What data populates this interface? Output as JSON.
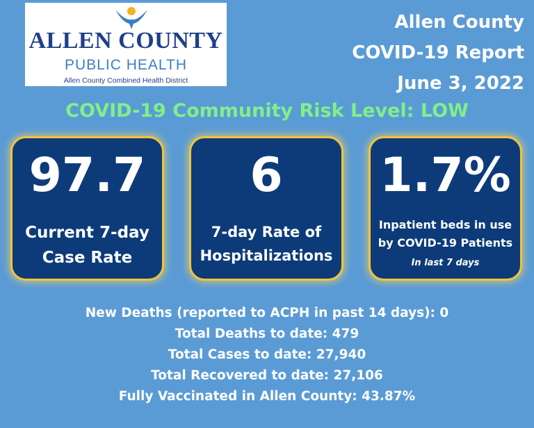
{
  "logo": {
    "name": "ALLEN COUNTY",
    "subtitle": "PUBLIC HEALTH",
    "tagline": "Allen County Combined Health District",
    "colors": {
      "navy": "#1f3f8a",
      "blue": "#3a7fc4",
      "gold": "#f2b51d"
    }
  },
  "report": {
    "county": "Allen County",
    "title": "COVID-19 Report",
    "date": "June 3, 2022"
  },
  "risk_level": "COVID-19 Community Risk Level: LOW",
  "cards": [
    {
      "value": "97.7",
      "label_line1": "Current 7-day",
      "label_line2": "Case Rate"
    },
    {
      "value": "6",
      "label_line1": "7-day Rate of",
      "label_line2": "Hospitalizations"
    },
    {
      "value": "1.7%",
      "label_line1": "Inpatient beds in use",
      "label_line2": "by COVID-19 Patients",
      "note": "In last  7 days"
    }
  ],
  "stats": [
    "New Deaths (reported to ACPH in past 14 days): 0",
    "Total Deaths to date: 479",
    "Total Cases to date: 27,940",
    "Total Recovered to date: 27,106",
    "Fully Vaccinated in Allen County: 43.87%"
  ],
  "colors": {
    "background": "#5b9bd5",
    "card": "#0d3b7a",
    "card_border": "#f3c33c",
    "risk_text": "#7ff08a"
  }
}
